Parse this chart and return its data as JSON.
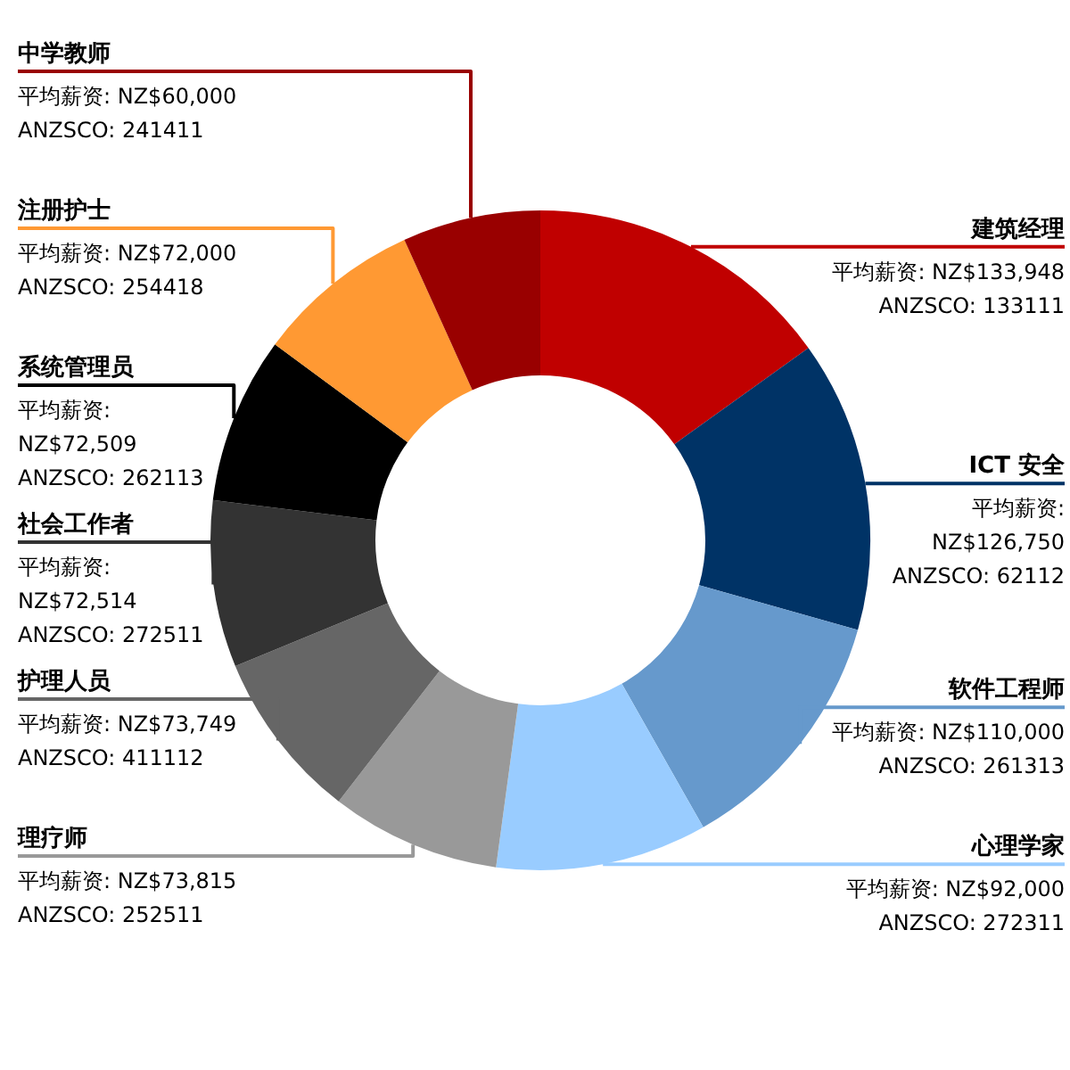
{
  "chart_data": {
    "type": "donut",
    "categories": [
      "建筑经理",
      "ICT 安全",
      "软件工程师",
      "心理学家",
      "理疗师",
      "护理人员",
      "社会工作者",
      "系统管理员",
      "注册护士",
      "中学教师"
    ],
    "values": [
      133948,
      126750,
      110000,
      92000,
      73815,
      73749,
      72514,
      72509,
      72000,
      60000
    ],
    "colors": [
      "#c00000",
      "#003366",
      "#6699cc",
      "#99ccff",
      "#999999",
      "#666666",
      "#333333",
      "#000000",
      "#ff9933",
      "#990000"
    ],
    "value_labels": [
      "平均薪资: NZ$133,948",
      "平均薪资: NZ$126,750",
      "平均薪资: NZ$110,000",
      "平均薪资: NZ$92,000",
      "平均薪资: NZ$73,815",
      "平均薪资: NZ$73,749",
      "平均薪资: NZ$72,514",
      "平均薪资: NZ$72,509",
      "平均薪资: NZ$72,000",
      "平均薪资: NZ$60,000"
    ],
    "annotations": [
      "ANZSCO: 133111",
      "ANZSCO: 62112",
      "ANZSCO: 261313",
      "ANZSCO: 272311",
      "ANZSCO: 252511",
      "ANZSCO: 411112",
      "ANZSCO: 272511",
      "ANZSCO: 262113",
      "ANZSCO: 254418",
      "ANZSCO: 241411"
    ]
  }
}
